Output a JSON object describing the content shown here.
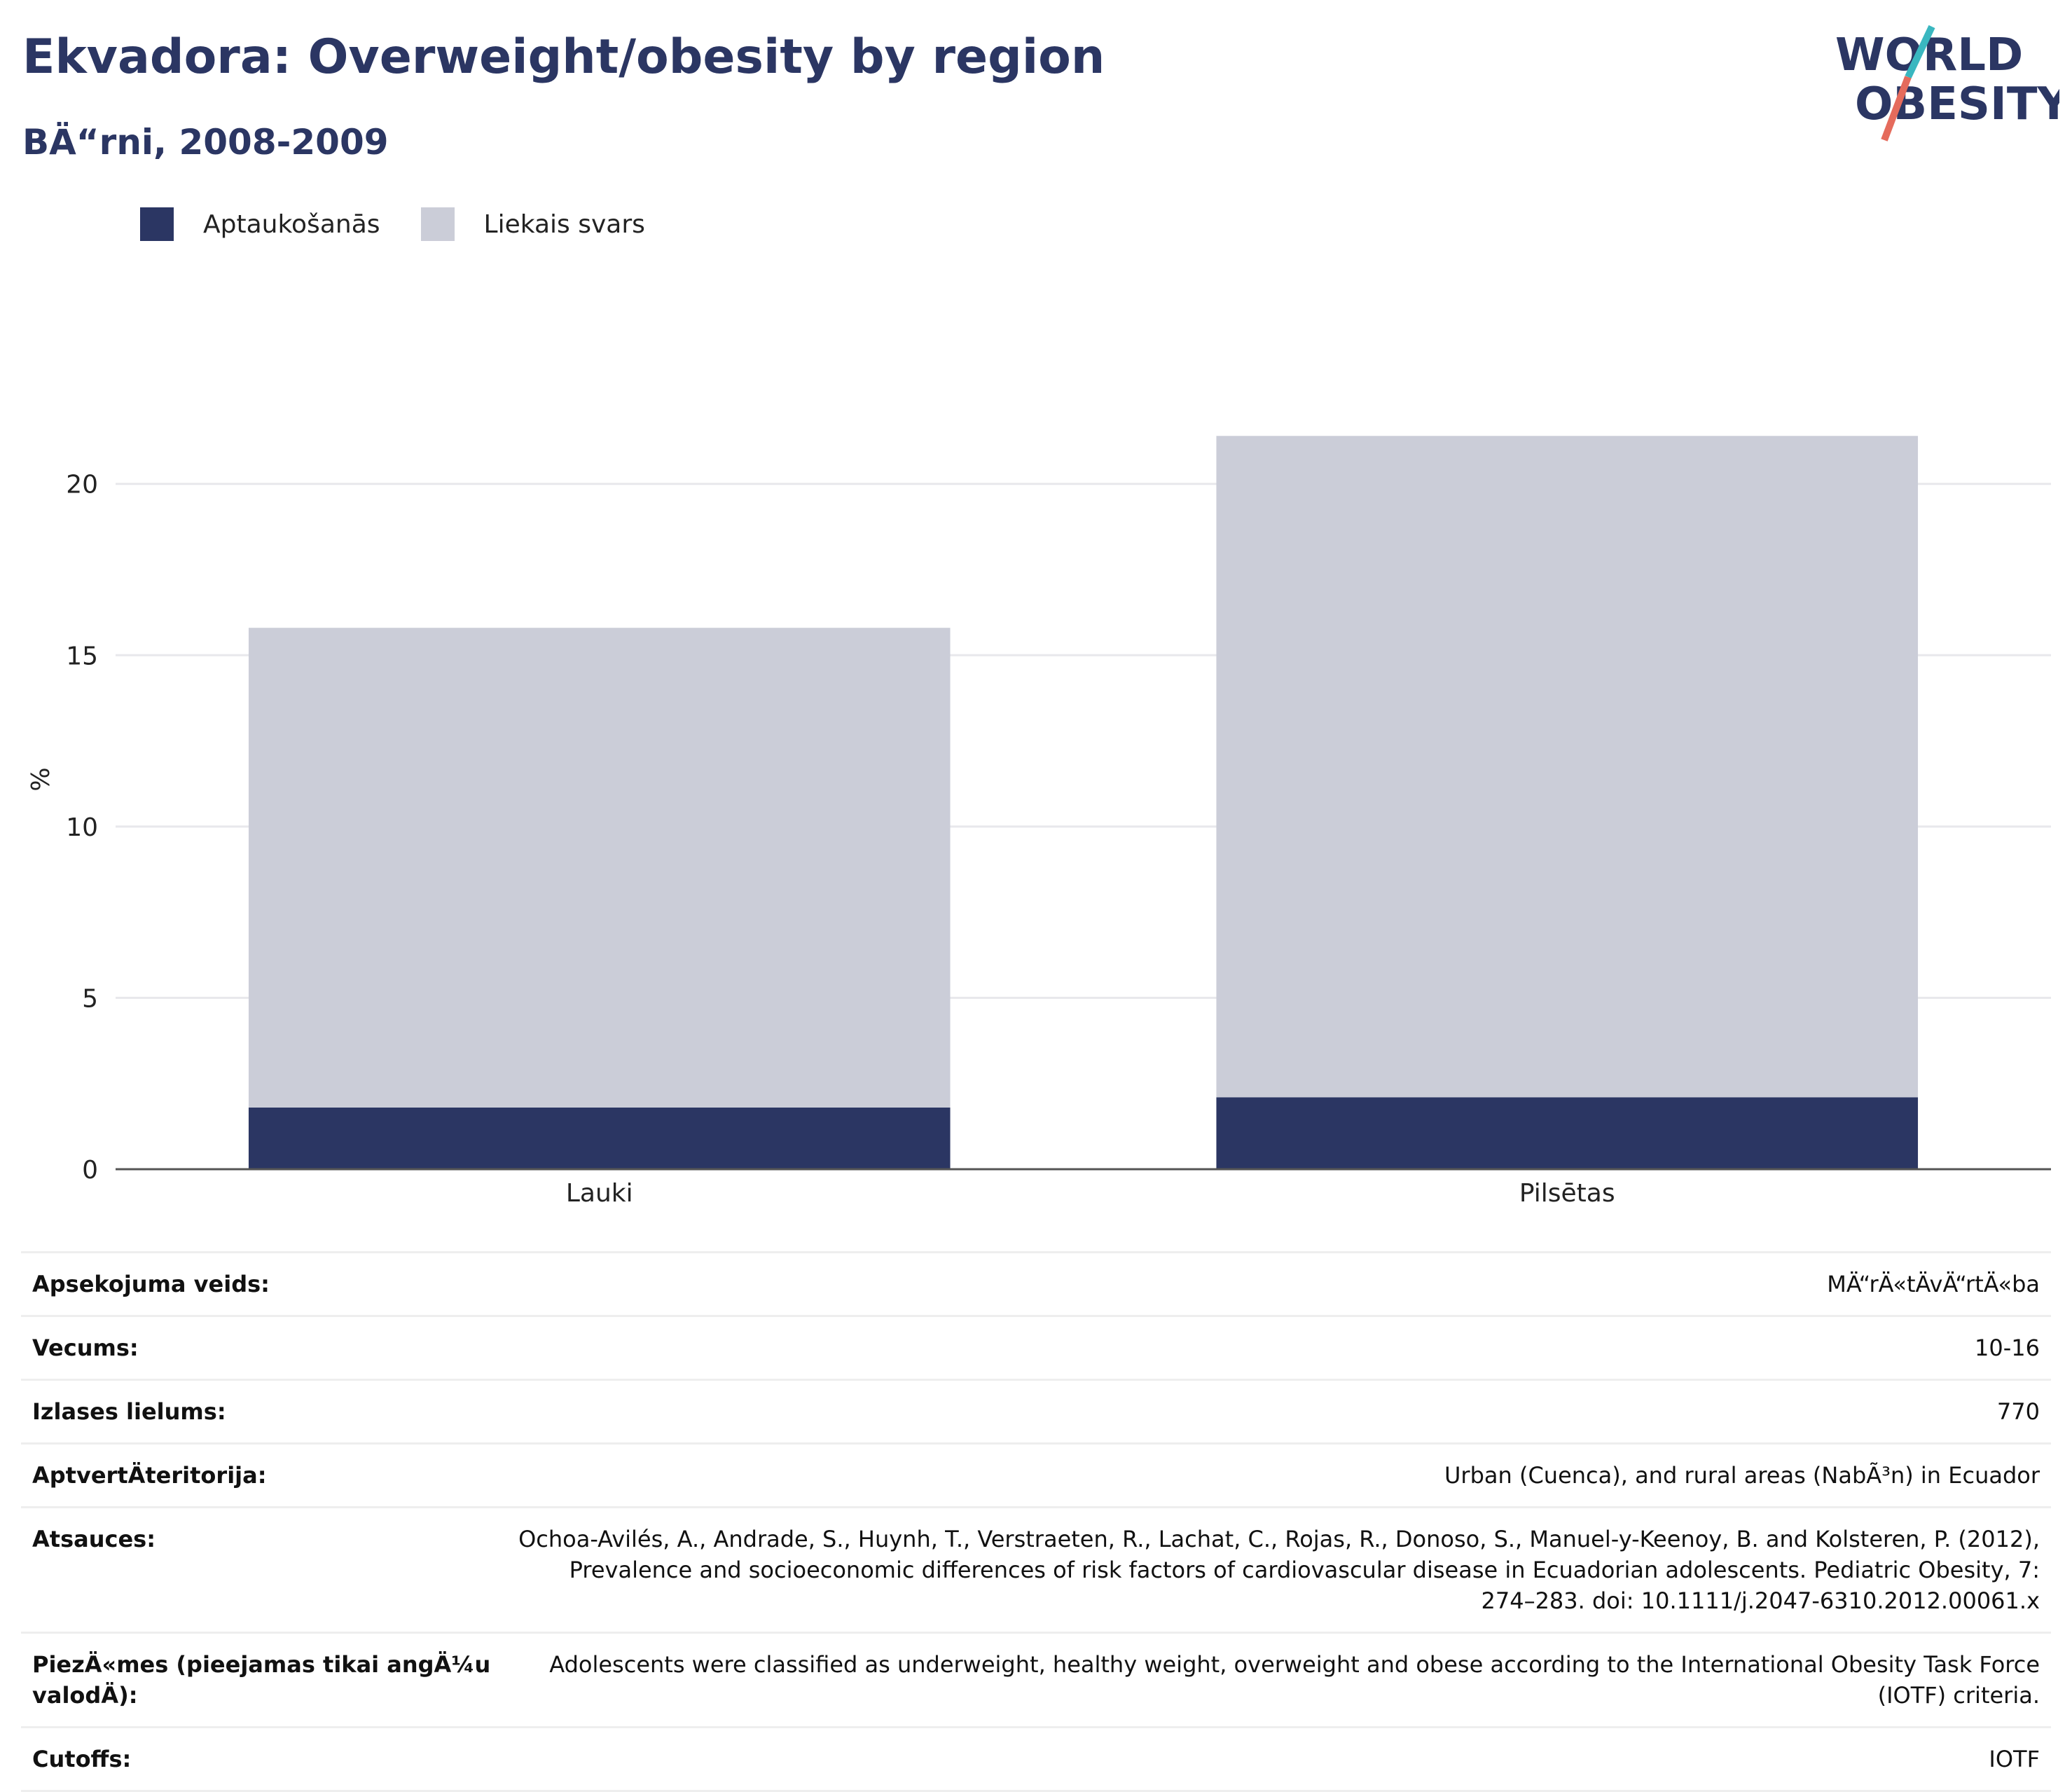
{
  "header": {
    "title": "Ekvadora: Overweight/obesity by region",
    "subtitle": "BÄ“rni, 2008-2009"
  },
  "logo": {
    "line1": "WORLD",
    "line2": "OBESITY"
  },
  "colors": {
    "obesity": "#2b3663",
    "overweight": "#cbcdd8",
    "title": "#2b3663",
    "logo_teal": "#3ab7c0",
    "logo_coral": "#e56b5c"
  },
  "legend": [
    {
      "label": "Aptaukošanās",
      "color": "#2b3663"
    },
    {
      "label": "Liekais svars",
      "color": "#cbcdd8"
    }
  ],
  "chart_data": {
    "type": "bar",
    "stacked": true,
    "categories": [
      "Lauki",
      "Pilsētas"
    ],
    "series": [
      {
        "name": "Aptaukošanās",
        "values": [
          1.8,
          2.1
        ]
      },
      {
        "name": "Liekais svars",
        "values": [
          14.0,
          19.3
        ]
      }
    ],
    "ylabel": "%",
    "ylim": [
      0,
      23
    ],
    "yticks": [
      0,
      5,
      10,
      15,
      20
    ],
    "grid": true,
    "legend_position": "top-left"
  },
  "meta": {
    "rows": [
      {
        "key": "Apsekojuma veids:",
        "value": "MÄ“rÄ«tÄvÄ“rtÄ«ba"
      },
      {
        "key": "Vecums:",
        "value": "10-16"
      },
      {
        "key": "Izlases lielums:",
        "value": "770"
      },
      {
        "key": "AptvertÄteritorija:",
        "value": "Urban (Cuenca), and rural areas (NabÃ³n) in Ecuador"
      },
      {
        "key": "Atsauces:",
        "value": "Ochoa-Avilés, A., Andrade, S., Huynh, T., Verstraeten, R., Lachat, C., Rojas, R., Donoso, S., Manuel-y-Keenoy, B. and Kolsteren, P. (2012), Prevalence and socioeconomic differences of risk factors of cardiovascular disease in Ecuadorian adolescents. Pediatric Obesity, 7: 274–283. doi: 10.1111/j.2047-6310.2012.00061.x"
      },
      {
        "key": "PiezÄ«mes (pieejamas tikai angÄ¼u valodÄ):",
        "value": "Adolescents were classified as underweight, healthy weight, overweight and obese according to the International Obesity Task Force (IOTF) criteria."
      },
      {
        "key": "Cutoffs:",
        "value": "IOTF"
      }
    ]
  }
}
